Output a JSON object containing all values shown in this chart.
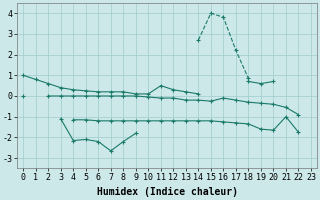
{
  "x_values": [
    0,
    1,
    2,
    3,
    4,
    5,
    6,
    7,
    8,
    9,
    10,
    11,
    12,
    13,
    14,
    15,
    16,
    17,
    18,
    19,
    20,
    21,
    22,
    23
  ],
  "line1_y": [
    1.0,
    0.8,
    0.6,
    0.4,
    0.3,
    0.25,
    0.2,
    0.2,
    0.2,
    0.1,
    0.1,
    0.5,
    0.3,
    0.2,
    0.1,
    null,
    null,
    null,
    0.7,
    0.6,
    0.7,
    null,
    null,
    null
  ],
  "line2_y": [
    0.0,
    null,
    0.0,
    0.0,
    0.0,
    0.0,
    0.0,
    0.0,
    0.0,
    0.0,
    -0.05,
    -0.1,
    -0.1,
    -0.2,
    -0.2,
    -0.25,
    -0.1,
    -0.2,
    -0.3,
    -0.35,
    -0.4,
    -0.55,
    -0.9,
    null
  ],
  "line3_y": [
    null,
    null,
    null,
    null,
    null,
    null,
    null,
    null,
    null,
    null,
    null,
    null,
    null,
    null,
    2.7,
    4.0,
    3.8,
    2.2,
    0.85,
    null,
    null,
    null,
    null,
    null
  ],
  "line4_y": [
    null,
    null,
    null,
    -1.1,
    -2.15,
    -2.1,
    -2.2,
    -2.65,
    -2.2,
    -1.8,
    null,
    null,
    null,
    null,
    null,
    null,
    null,
    null,
    null,
    null,
    null,
    null,
    null,
    null
  ],
  "line5_y": [
    null,
    null,
    null,
    null,
    -1.15,
    -1.15,
    -1.2,
    -1.2,
    -1.2,
    -1.2,
    -1.2,
    -1.2,
    -1.2,
    -1.2,
    -1.2,
    -1.2,
    -1.25,
    -1.3,
    -1.35,
    -1.6,
    -1.65,
    -1.0,
    -1.75,
    null
  ],
  "background_color": "#cce8e8",
  "grid_color": "#a0cccc",
  "line_color": "#1a7a6a",
  "xlabel": "Humidex (Indice chaleur)",
  "ylim": [
    -3.5,
    4.5
  ],
  "xlim_min": -0.5,
  "xlim_max": 23.5,
  "xlabel_fontsize": 7,
  "tick_fontsize": 6
}
